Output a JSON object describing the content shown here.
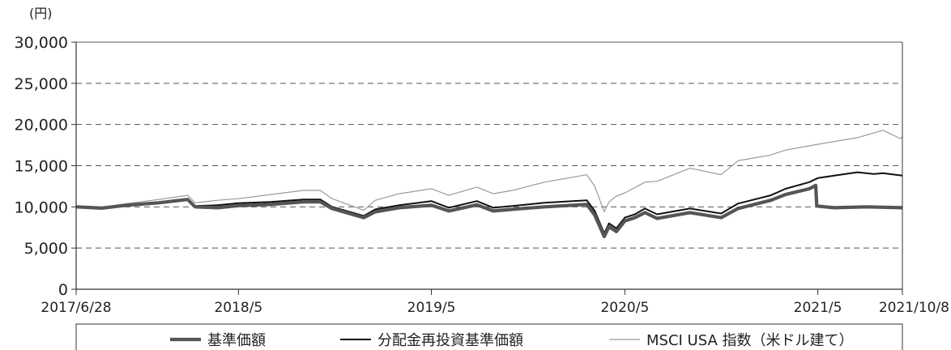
{
  "chart_data": {
    "type": "line",
    "unit_label": "(円)",
    "ylim": [
      0,
      30000
    ],
    "yticks": [
      0,
      5000,
      10000,
      15000,
      20000,
      25000,
      30000
    ],
    "ytick_labels": [
      "0",
      "5,000",
      "10,000",
      "15,000",
      "20,000",
      "25,000",
      "30,000"
    ],
    "xlim": [
      "2017-06-28",
      "2021-10-08"
    ],
    "xticks": [
      "2017-06-28",
      "2018-05-01",
      "2019-05-01",
      "2020-05-01",
      "2021-05-01",
      "2021-10-08"
    ],
    "xtick_labels": [
      "2017/6/28",
      "2018/5",
      "2019/5",
      "2020/5",
      "2021/5",
      "2021/10/8"
    ],
    "grid": "horizontal dashed",
    "legend_position": "bottom",
    "series": [
      {
        "name": "基準価額",
        "color": "#555555",
        "style": "thick",
        "points": [
          [
            "2017-06-28",
            10000
          ],
          [
            "2017-08-15",
            9850
          ],
          [
            "2017-10-01",
            10200
          ],
          [
            "2017-12-01",
            10500
          ],
          [
            "2018-01-25",
            10900
          ],
          [
            "2018-02-08",
            10000
          ],
          [
            "2018-03-23",
            9900
          ],
          [
            "2018-05-01",
            10150
          ],
          [
            "2018-07-01",
            10300
          ],
          [
            "2018-09-01",
            10600
          ],
          [
            "2018-10-03",
            10600
          ],
          [
            "2018-10-25",
            9800
          ],
          [
            "2018-12-24",
            8700
          ],
          [
            "2019-01-15",
            9400
          ],
          [
            "2019-03-01",
            9900
          ],
          [
            "2019-05-01",
            10200
          ],
          [
            "2019-06-03",
            9500
          ],
          [
            "2019-07-26",
            10250
          ],
          [
            "2019-08-26",
            9500
          ],
          [
            "2019-10-01",
            9700
          ],
          [
            "2019-12-01",
            10000
          ],
          [
            "2020-02-19",
            10300
          ],
          [
            "2020-03-05",
            9000
          ],
          [
            "2020-03-23",
            6400
          ],
          [
            "2020-04-01",
            7600
          ],
          [
            "2020-04-15",
            7000
          ],
          [
            "2020-05-01",
            8300
          ],
          [
            "2020-05-20",
            8700
          ],
          [
            "2020-06-08",
            9300
          ],
          [
            "2020-07-01",
            8600
          ],
          [
            "2020-09-01",
            9300
          ],
          [
            "2020-10-30",
            8700
          ],
          [
            "2020-12-01",
            9800
          ],
          [
            "2021-02-01",
            10800
          ],
          [
            "2021-03-01",
            11500
          ],
          [
            "2021-04-15",
            12200
          ],
          [
            "2021-04-27",
            12600
          ],
          [
            "2021-04-29",
            10100
          ],
          [
            "2021-06-01",
            9900
          ],
          [
            "2021-08-01",
            10000
          ],
          [
            "2021-10-08",
            9900
          ]
        ]
      },
      {
        "name": "分配金再投資基準価額",
        "color": "#111111",
        "style": "medium",
        "points": [
          [
            "2017-06-28",
            10000
          ],
          [
            "2017-08-15",
            9850
          ],
          [
            "2017-10-01",
            10200
          ],
          [
            "2017-12-01",
            10500
          ],
          [
            "2018-01-25",
            10900
          ],
          [
            "2018-02-08",
            10100
          ],
          [
            "2018-03-23",
            10200
          ],
          [
            "2018-05-01",
            10450
          ],
          [
            "2018-07-01",
            10600
          ],
          [
            "2018-09-01",
            10900
          ],
          [
            "2018-10-03",
            10900
          ],
          [
            "2018-10-25",
            10000
          ],
          [
            "2018-12-24",
            8900
          ],
          [
            "2019-01-15",
            9700
          ],
          [
            "2019-03-01",
            10200
          ],
          [
            "2019-05-01",
            10700
          ],
          [
            "2019-06-03",
            9900
          ],
          [
            "2019-07-26",
            10700
          ],
          [
            "2019-08-26",
            9900
          ],
          [
            "2019-10-01",
            10100
          ],
          [
            "2019-12-01",
            10500
          ],
          [
            "2020-02-19",
            10800
          ],
          [
            "2020-03-05",
            9500
          ],
          [
            "2020-03-23",
            6800
          ],
          [
            "2020-04-01",
            8000
          ],
          [
            "2020-04-15",
            7400
          ],
          [
            "2020-05-01",
            8700
          ],
          [
            "2020-05-20",
            9100
          ],
          [
            "2020-06-08",
            9800
          ],
          [
            "2020-07-01",
            9100
          ],
          [
            "2020-09-01",
            9800
          ],
          [
            "2020-10-30",
            9200
          ],
          [
            "2020-12-01",
            10400
          ],
          [
            "2021-02-01",
            11400
          ],
          [
            "2021-03-01",
            12200
          ],
          [
            "2021-04-15",
            13000
          ],
          [
            "2021-05-01",
            13500
          ],
          [
            "2021-06-01",
            13800
          ],
          [
            "2021-07-15",
            14200
          ],
          [
            "2021-08-15",
            14000
          ],
          [
            "2021-09-01",
            14100
          ],
          [
            "2021-10-08",
            13800
          ]
        ]
      },
      {
        "name": "MSCI USA 指数（米ドル建て）",
        "color": "#9a9a9a",
        "style": "thin",
        "points": [
          [
            "2017-06-28",
            10000
          ],
          [
            "2017-08-15",
            9950
          ],
          [
            "2017-10-01",
            10400
          ],
          [
            "2017-12-01",
            10900
          ],
          [
            "2018-01-25",
            11400
          ],
          [
            "2018-02-08",
            10500
          ],
          [
            "2018-03-23",
            10800
          ],
          [
            "2018-05-01",
            11000
          ],
          [
            "2018-07-01",
            11500
          ],
          [
            "2018-09-01",
            12000
          ],
          [
            "2018-10-03",
            12000
          ],
          [
            "2018-10-25",
            11000
          ],
          [
            "2018-12-24",
            9600
          ],
          [
            "2019-01-15",
            10800
          ],
          [
            "2019-03-01",
            11600
          ],
          [
            "2019-05-01",
            12200
          ],
          [
            "2019-06-03",
            11400
          ],
          [
            "2019-07-26",
            12400
          ],
          [
            "2019-08-26",
            11600
          ],
          [
            "2019-10-01",
            12000
          ],
          [
            "2019-12-01",
            13000
          ],
          [
            "2020-02-19",
            13900
          ],
          [
            "2020-03-05",
            12500
          ],
          [
            "2020-03-23",
            9400
          ],
          [
            "2020-04-01",
            10600
          ],
          [
            "2020-04-15",
            11300
          ],
          [
            "2020-05-01",
            11700
          ],
          [
            "2020-06-08",
            13000
          ],
          [
            "2020-07-01",
            13100
          ],
          [
            "2020-09-01",
            14700
          ],
          [
            "2020-10-30",
            13900
          ],
          [
            "2020-12-01",
            15600
          ],
          [
            "2021-02-01",
            16300
          ],
          [
            "2021-03-01",
            16900
          ],
          [
            "2021-05-01",
            17600
          ],
          [
            "2021-07-15",
            18400
          ],
          [
            "2021-09-01",
            19300
          ],
          [
            "2021-10-04",
            18300
          ],
          [
            "2021-10-08",
            18500
          ]
        ]
      }
    ]
  }
}
